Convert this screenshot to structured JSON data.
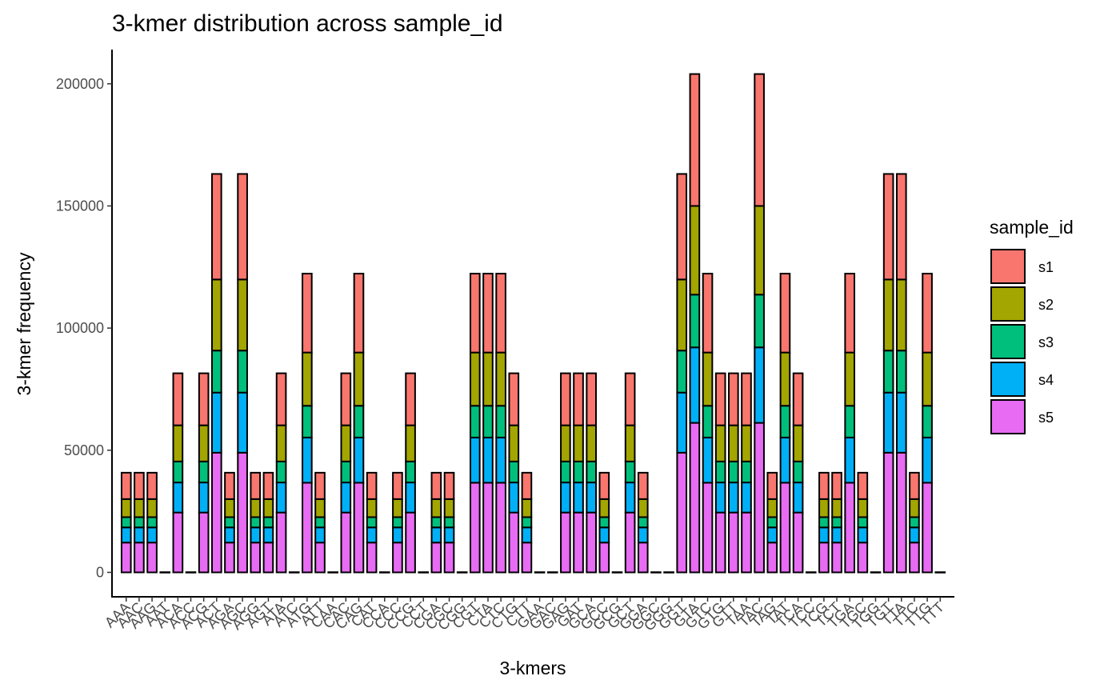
{
  "chart_data": {
    "type": "bar",
    "stacked": true,
    "title": "3-kmer distribution across sample_id",
    "xlabel": "3-kmers",
    "ylabel": "3-kmer frequency",
    "ylim": [
      -10000,
      214000
    ],
    "yticks": [
      0,
      50000,
      100000,
      150000,
      200000
    ],
    "ytick_labels": [
      "0",
      "50000",
      "100000",
      "150000",
      "200000"
    ],
    "grid": false,
    "legend_position": "right",
    "legend_title": "sample_id",
    "categories": [
      "AAA",
      "AAC",
      "AAG",
      "AAT",
      "ACA",
      "ACC",
      "ACG",
      "ACT",
      "AGA",
      "AGC",
      "AGG",
      "AGT",
      "ATA",
      "ATC",
      "ATG",
      "ATT",
      "CAA",
      "CAC",
      "CAG",
      "CAT",
      "CCA",
      "CCC",
      "CCG",
      "CCT",
      "CGA",
      "CGC",
      "CGG",
      "CGT",
      "CTA",
      "CTC",
      "CTG",
      "CTT",
      "GAA",
      "GAC",
      "GAG",
      "GAT",
      "GCA",
      "GCC",
      "GCG",
      "GCT",
      "GGA",
      "GGC",
      "GGG",
      "GGT",
      "GTA",
      "GTC",
      "GTG",
      "GTT",
      "TAA",
      "TAC",
      "TAG",
      "TAT",
      "TCA",
      "TCC",
      "TCG",
      "TCT",
      "TGA",
      "TGC",
      "TGG",
      "TGT",
      "TTA",
      "TTC",
      "TTG",
      "TTT"
    ],
    "series": [
      {
        "name": "s5",
        "color": "#E76BF3",
        "values": [
          12200,
          12200,
          12200,
          0,
          24500,
          0,
          24500,
          49000,
          12200,
          49000,
          12200,
          12200,
          24500,
          0,
          36700,
          12200,
          0,
          24500,
          36700,
          12200,
          0,
          12200,
          24500,
          0,
          12200,
          12200,
          0,
          36700,
          36700,
          36700,
          24500,
          12200,
          0,
          0,
          24500,
          24500,
          24500,
          12200,
          0,
          24500,
          12200,
          0,
          0,
          49000,
          61200,
          36700,
          24500,
          24500,
          24500,
          61200,
          12200,
          36700,
          24500,
          0,
          12200,
          12200,
          36700,
          12200,
          0,
          49000,
          49000,
          12200,
          36700,
          0
        ]
      },
      {
        "name": "s4",
        "color": "#00B0F6",
        "values": [
          6200,
          6200,
          6200,
          0,
          12300,
          0,
          12300,
          24600,
          6200,
          24600,
          6200,
          6200,
          12300,
          0,
          18500,
          6200,
          0,
          12300,
          18500,
          6200,
          0,
          6200,
          12300,
          0,
          6200,
          6200,
          0,
          18500,
          18500,
          18500,
          12300,
          6200,
          0,
          0,
          12300,
          12300,
          12300,
          6200,
          0,
          12300,
          6200,
          0,
          0,
          24600,
          30900,
          18500,
          12300,
          12300,
          12300,
          30900,
          6200,
          18500,
          12300,
          0,
          6200,
          6200,
          18500,
          6200,
          0,
          24600,
          24600,
          6200,
          18500,
          0
        ]
      },
      {
        "name": "s3",
        "color": "#00BF7D",
        "values": [
          4200,
          4200,
          4200,
          0,
          8600,
          0,
          8600,
          17200,
          4200,
          17200,
          4200,
          4200,
          8600,
          0,
          13000,
          4200,
          0,
          8600,
          13000,
          4200,
          0,
          4200,
          8600,
          0,
          4200,
          4200,
          0,
          13000,
          13000,
          13000,
          8600,
          4200,
          0,
          0,
          8600,
          8600,
          8600,
          4200,
          0,
          8600,
          4200,
          0,
          0,
          17200,
          21600,
          13000,
          8600,
          8600,
          8600,
          21600,
          4200,
          13000,
          8600,
          0,
          4200,
          4200,
          13000,
          4200,
          0,
          17200,
          17200,
          4200,
          13000,
          0
        ]
      },
      {
        "name": "s2",
        "color": "#A3A500",
        "values": [
          7400,
          7400,
          7400,
          0,
          14800,
          0,
          14800,
          29100,
          7400,
          29100,
          7400,
          7400,
          14800,
          0,
          21800,
          7400,
          0,
          14800,
          21800,
          7400,
          0,
          7400,
          14800,
          0,
          7400,
          7400,
          0,
          21800,
          21800,
          21800,
          14800,
          7400,
          0,
          0,
          14800,
          14800,
          14800,
          7400,
          0,
          14800,
          7400,
          0,
          0,
          29100,
          36300,
          21800,
          14800,
          14800,
          14800,
          36300,
          7400,
          21800,
          14800,
          0,
          7400,
          7400,
          21800,
          7400,
          0,
          29100,
          29100,
          7400,
          21800,
          0
        ]
      },
      {
        "name": "s1",
        "color": "#F8766D",
        "values": [
          10800,
          10800,
          10800,
          0,
          21300,
          0,
          21300,
          43200,
          10800,
          43200,
          10800,
          10800,
          21300,
          0,
          32300,
          10800,
          0,
          21300,
          32300,
          10800,
          0,
          10800,
          21300,
          0,
          10800,
          10800,
          0,
          32300,
          32300,
          32300,
          21300,
          10800,
          0,
          0,
          21300,
          21300,
          21300,
          10800,
          0,
          21300,
          10800,
          0,
          0,
          43200,
          54000,
          32300,
          21300,
          21300,
          21300,
          54000,
          10800,
          32300,
          21300,
          0,
          10800,
          10800,
          32300,
          10800,
          0,
          43200,
          43200,
          10800,
          32300,
          0
        ]
      }
    ],
    "legend_order": [
      "s1",
      "s2",
      "s3",
      "s4",
      "s5"
    ]
  }
}
